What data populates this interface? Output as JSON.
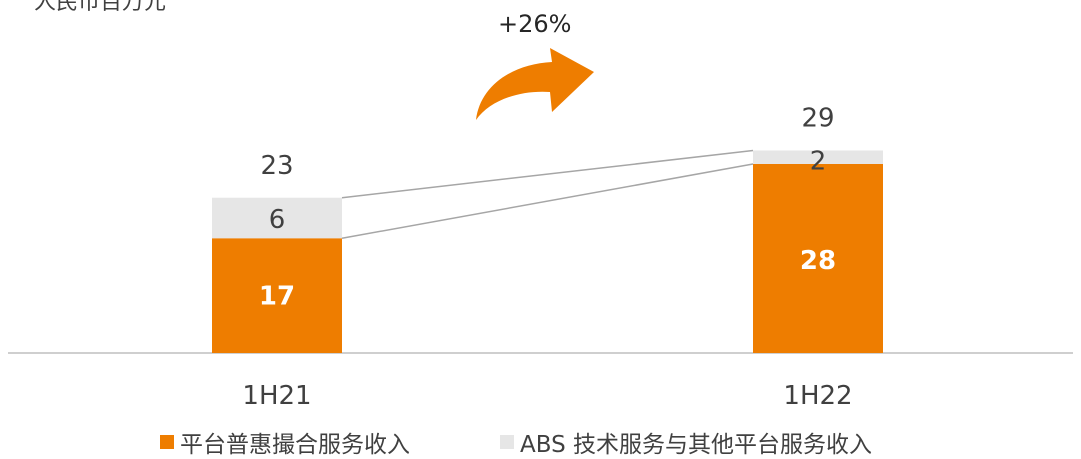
{
  "unit_label": "人民币百万元",
  "growth_label": "+26%",
  "colors": {
    "platform": "#ee7d00",
    "abs": "#e6e6e6",
    "text": "#404040",
    "connector": "#a6a6a6",
    "axis": "#bfbfbf",
    "arrow": "#ee7d00"
  },
  "chart_data": {
    "type": "bar",
    "stacked": true,
    "categories": [
      "1H21",
      "1H22"
    ],
    "series": [
      {
        "name": "平台普惠撮合服务收入",
        "values": [
          17,
          28
        ],
        "color": "#ee7d00"
      },
      {
        "name": "ABS 技术服务与其他平台服务收入",
        "values": [
          6,
          2
        ],
        "color": "#e6e6e6"
      }
    ],
    "totals": [
      23,
      29
    ],
    "grid": false,
    "legend": "bottom"
  }
}
